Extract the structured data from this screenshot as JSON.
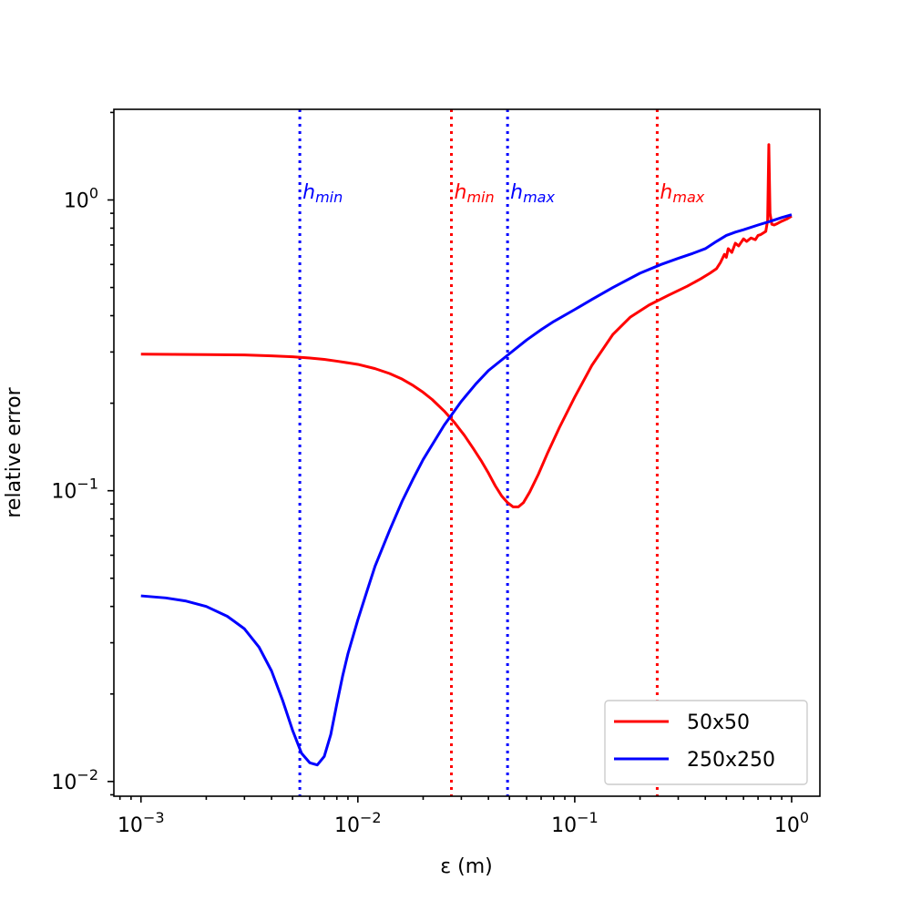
{
  "chart_data": {
    "type": "line",
    "title": "",
    "xlabel": "ε (m)",
    "ylabel": "relative error",
    "xscale": "log",
    "yscale": "log",
    "xlim": [
      0.00075,
      1.35
    ],
    "ylim": [
      0.0089,
      2.05
    ],
    "grid": false,
    "legend_location": "lower-right",
    "x_ticks": [
      {
        "value": 0.001,
        "base": "10",
        "exp": "−3"
      },
      {
        "value": 0.01,
        "base": "10",
        "exp": "−2"
      },
      {
        "value": 0.1,
        "base": "10",
        "exp": "−1"
      },
      {
        "value": 1,
        "base": "10",
        "exp": "0"
      }
    ],
    "y_ticks": [
      {
        "value": 0.01,
        "base": "10",
        "exp": "−2"
      },
      {
        "value": 0.1,
        "base": "10",
        "exp": "−1"
      },
      {
        "value": 1,
        "base": "10",
        "exp": "0"
      }
    ],
    "series": [
      {
        "name": "50x50",
        "color": "#ff0000",
        "points": [
          [
            0.001,
            0.295
          ],
          [
            0.002,
            0.294
          ],
          [
            0.003,
            0.293
          ],
          [
            0.004,
            0.291
          ],
          [
            0.005,
            0.289
          ],
          [
            0.006,
            0.286
          ],
          [
            0.007,
            0.283
          ],
          [
            0.008,
            0.279
          ],
          [
            0.01,
            0.272
          ],
          [
            0.012,
            0.263
          ],
          [
            0.014,
            0.253
          ],
          [
            0.016,
            0.242
          ],
          [
            0.018,
            0.23
          ],
          [
            0.02,
            0.218
          ],
          [
            0.022,
            0.206
          ],
          [
            0.025,
            0.188
          ],
          [
            0.028,
            0.171
          ],
          [
            0.031,
            0.155
          ],
          [
            0.034,
            0.14
          ],
          [
            0.037,
            0.127
          ],
          [
            0.04,
            0.115
          ],
          [
            0.043,
            0.104
          ],
          [
            0.046,
            0.096
          ],
          [
            0.049,
            0.091
          ],
          [
            0.052,
            0.088
          ],
          [
            0.055,
            0.088
          ],
          [
            0.058,
            0.091
          ],
          [
            0.062,
            0.099
          ],
          [
            0.068,
            0.114
          ],
          [
            0.075,
            0.135
          ],
          [
            0.085,
            0.165
          ],
          [
            0.1,
            0.21
          ],
          [
            0.12,
            0.27
          ],
          [
            0.15,
            0.345
          ],
          [
            0.18,
            0.395
          ],
          [
            0.22,
            0.435
          ],
          [
            0.27,
            0.47
          ],
          [
            0.33,
            0.505
          ],
          [
            0.38,
            0.535
          ],
          [
            0.42,
            0.56
          ],
          [
            0.45,
            0.58
          ],
          [
            0.47,
            0.61
          ],
          [
            0.49,
            0.65
          ],
          [
            0.5,
            0.635
          ],
          [
            0.51,
            0.68
          ],
          [
            0.53,
            0.66
          ],
          [
            0.55,
            0.71
          ],
          [
            0.57,
            0.695
          ],
          [
            0.6,
            0.735
          ],
          [
            0.62,
            0.72
          ],
          [
            0.65,
            0.74
          ],
          [
            0.68,
            0.73
          ],
          [
            0.7,
            0.755
          ],
          [
            0.72,
            0.76
          ],
          [
            0.74,
            0.77
          ],
          [
            0.76,
            0.78
          ],
          [
            0.775,
            0.85
          ],
          [
            0.785,
            1.55
          ],
          [
            0.795,
            0.9
          ],
          [
            0.81,
            0.825
          ],
          [
            0.83,
            0.82
          ],
          [
            0.86,
            0.83
          ],
          [
            0.9,
            0.845
          ],
          [
            0.95,
            0.86
          ],
          [
            1.0,
            0.88
          ]
        ]
      },
      {
        "name": "250x250",
        "color": "#0000ff",
        "points": [
          [
            0.001,
            0.0435
          ],
          [
            0.0013,
            0.0428
          ],
          [
            0.0016,
            0.0418
          ],
          [
            0.002,
            0.04
          ],
          [
            0.0025,
            0.037
          ],
          [
            0.003,
            0.0335
          ],
          [
            0.0035,
            0.029
          ],
          [
            0.004,
            0.024
          ],
          [
            0.0045,
            0.019
          ],
          [
            0.005,
            0.015
          ],
          [
            0.0055,
            0.0125
          ],
          [
            0.006,
            0.0116
          ],
          [
            0.0065,
            0.0114
          ],
          [
            0.007,
            0.0122
          ],
          [
            0.0075,
            0.0145
          ],
          [
            0.008,
            0.0185
          ],
          [
            0.0085,
            0.023
          ],
          [
            0.009,
            0.0275
          ],
          [
            0.01,
            0.036
          ],
          [
            0.011,
            0.045
          ],
          [
            0.012,
            0.055
          ],
          [
            0.014,
            0.073
          ],
          [
            0.016,
            0.092
          ],
          [
            0.018,
            0.11
          ],
          [
            0.02,
            0.128
          ],
          [
            0.025,
            0.168
          ],
          [
            0.03,
            0.203
          ],
          [
            0.035,
            0.233
          ],
          [
            0.04,
            0.259
          ],
          [
            0.05,
            0.296
          ],
          [
            0.06,
            0.33
          ],
          [
            0.07,
            0.358
          ],
          [
            0.08,
            0.382
          ],
          [
            0.1,
            0.42
          ],
          [
            0.12,
            0.455
          ],
          [
            0.15,
            0.5
          ],
          [
            0.2,
            0.56
          ],
          [
            0.25,
            0.6
          ],
          [
            0.3,
            0.63
          ],
          [
            0.35,
            0.655
          ],
          [
            0.4,
            0.68
          ],
          [
            0.45,
            0.72
          ],
          [
            0.5,
            0.755
          ],
          [
            0.55,
            0.775
          ],
          [
            0.6,
            0.79
          ],
          [
            0.7,
            0.82
          ],
          [
            0.8,
            0.845
          ],
          [
            0.9,
            0.87
          ],
          [
            1.0,
            0.89
          ]
        ]
      }
    ],
    "vlines": [
      {
        "x": 0.0054,
        "color": "#0000ff",
        "label": "h",
        "sub": "min"
      },
      {
        "x": 0.027,
        "color": "#ff0000",
        "label": "h",
        "sub": "min"
      },
      {
        "x": 0.049,
        "color": "#0000ff",
        "label": "h",
        "sub": "max"
      },
      {
        "x": 0.24,
        "color": "#ff0000",
        "label": "h",
        "sub": "max"
      }
    ]
  }
}
